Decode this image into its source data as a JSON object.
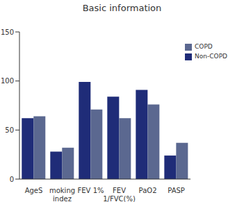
{
  "chart_data": {
    "type": "bar",
    "title": "Basic information",
    "categories": [
      "AgeS",
      "moking indez",
      "FEV 1%",
      "FEV 1/FVC(%)",
      "PaO2",
      "PASP"
    ],
    "series": [
      {
        "name": "Non-COPD",
        "color": "#1f2c78",
        "values": [
          62,
          28,
          99,
          84,
          91,
          24
        ]
      },
      {
        "name": "COPD",
        "color": "#5b6890",
        "values": [
          64,
          32,
          71,
          62,
          76,
          37
        ]
      }
    ],
    "ylim": [
      0,
      150
    ],
    "yticks": [
      0,
      50,
      100,
      150
    ],
    "grid": false,
    "legend": "upper right"
  }
}
